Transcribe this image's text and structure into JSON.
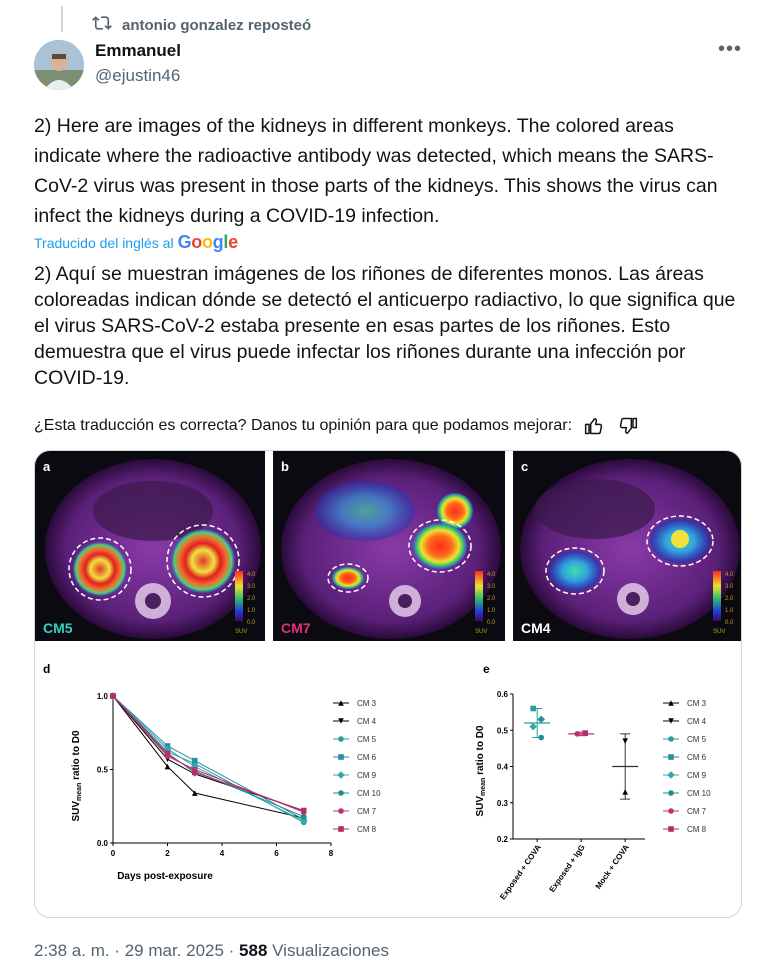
{
  "repost": {
    "text": "antonio gonzalez reposteó"
  },
  "author": {
    "name": "Emmanuel",
    "handle": "@ejustin46"
  },
  "post": {
    "text_en": "2) Here are images of the kidneys in different monkeys. The colored areas indicate where the radioactive antibody was detected, which means the SARS-CoV-2 virus was present in those parts of the kidneys. This shows the virus can infect the kidneys during a COVID-19 infection.",
    "translated_label": "Traducido del inglés al",
    "google_label": "Google",
    "text_es": "2) Aquí se muestran imágenes de los riñones de diferentes monos. Las áreas coloreadas indican dónde se detectó el anticuerpo radiactivo, lo que significa que el virus SARS-CoV-2 estaba presente en esas partes de los riñones. Esto demuestra que el virus puede infectar los riñones durante una infección por COVID-19.",
    "feedback": "¿Esta traducción es correcta? Danos tu opinión para que podamos mejorar:"
  },
  "figure": {
    "panels": [
      {
        "letter": "a",
        "label": "CM5",
        "label_color": "#2fd4c4"
      },
      {
        "letter": "b",
        "label": "CM7",
        "label_color": "#e0307a"
      },
      {
        "letter": "c",
        "label": "CM4",
        "label_color": "#ffffff"
      }
    ],
    "scale_ticks": [
      "4.0",
      "3.0",
      "2.0",
      "1.0",
      "0.0"
    ],
    "scale_unit": "SUV"
  },
  "chart_data": [
    {
      "type": "line",
      "panel": "d",
      "xlabel": "Days post-exposure",
      "ylabel": "SUVmean ratio to D0",
      "xlim": [
        0,
        8
      ],
      "ylim": [
        0,
        1.0
      ],
      "xticks": [
        "0",
        "2",
        "4",
        "6",
        "8"
      ],
      "yticks": [
        "0.0",
        "0.5",
        "1.0"
      ],
      "x": [
        0,
        2,
        3,
        7
      ],
      "series": [
        {
          "name": "CM 3",
          "color": "#000000",
          "marker": "triangle-up",
          "values": [
            1.0,
            0.52,
            0.34,
            0.17
          ]
        },
        {
          "name": "CM 4",
          "color": "#000000",
          "marker": "triangle-down",
          "values": [
            1.0,
            0.57,
            0.47,
            0.22
          ]
        },
        {
          "name": "CM 5",
          "color": "#2a9d9a",
          "marker": "circle",
          "values": [
            1.0,
            0.62,
            0.54,
            0.14
          ]
        },
        {
          "name": "CM 6",
          "color": "#2a8ea3",
          "marker": "square",
          "values": [
            1.0,
            0.66,
            0.56,
            0.16
          ]
        },
        {
          "name": "CM 9",
          "color": "#35a8a8",
          "marker": "diamond",
          "values": [
            1.0,
            0.64,
            0.52,
            0.15
          ]
        },
        {
          "name": "CM 10",
          "color": "#1f8f8c",
          "marker": "circle",
          "values": [
            1.0,
            0.6,
            0.49,
            0.18
          ]
        },
        {
          "name": "CM 7",
          "color": "#c0307a",
          "marker": "circle",
          "values": [
            1.0,
            0.59,
            0.5,
            0.21
          ]
        },
        {
          "name": "CM 8",
          "color": "#b0306a",
          "marker": "square",
          "values": [
            1.0,
            0.61,
            0.48,
            0.22
          ]
        }
      ]
    },
    {
      "type": "scatter",
      "panel": "e",
      "ylabel": "SUVmean ratio to D0",
      "ylim": [
        0.2,
        0.6
      ],
      "yticks": [
        "0.2",
        "0.3",
        "0.4",
        "0.5",
        "0.6"
      ],
      "categories": [
        "Exposed + COVA",
        "Exposed + IgG",
        "Mock + COVA"
      ],
      "groups": [
        {
          "category": "Exposed + COVA",
          "mean": 0.52,
          "error": 0.04,
          "points": [
            {
              "series": "CM 5",
              "value": 0.56,
              "color": "#2a9d9a",
              "marker": "square"
            },
            {
              "series": "CM 6",
              "value": 0.53,
              "color": "#2a8ea3",
              "marker": "diamond"
            },
            {
              "series": "CM 9",
              "value": 0.51,
              "color": "#35a8a8",
              "marker": "diamond"
            },
            {
              "series": "CM 10",
              "value": 0.48,
              "color": "#1f8f8c",
              "marker": "circle"
            }
          ]
        },
        {
          "category": "Exposed + IgG",
          "mean": 0.49,
          "error": 0.005,
          "points": [
            {
              "series": "CM 7",
              "value": 0.49,
              "color": "#c0307a",
              "marker": "circle"
            },
            {
              "series": "CM 8",
              "value": 0.492,
              "color": "#b0306a",
              "marker": "square"
            }
          ]
        },
        {
          "category": "Mock + COVA",
          "mean": 0.4,
          "error": 0.09,
          "points": [
            {
              "series": "CM 4",
              "value": 0.47,
              "color": "#000000",
              "marker": "triangle-down"
            },
            {
              "series": "CM 3",
              "value": 0.33,
              "color": "#000000",
              "marker": "triangle-up"
            }
          ]
        }
      ]
    }
  ],
  "footer": {
    "time": "2:38 a. m. · 29 mar. 2025 · ",
    "views": "588",
    "views_label": " Visualizaciones"
  }
}
